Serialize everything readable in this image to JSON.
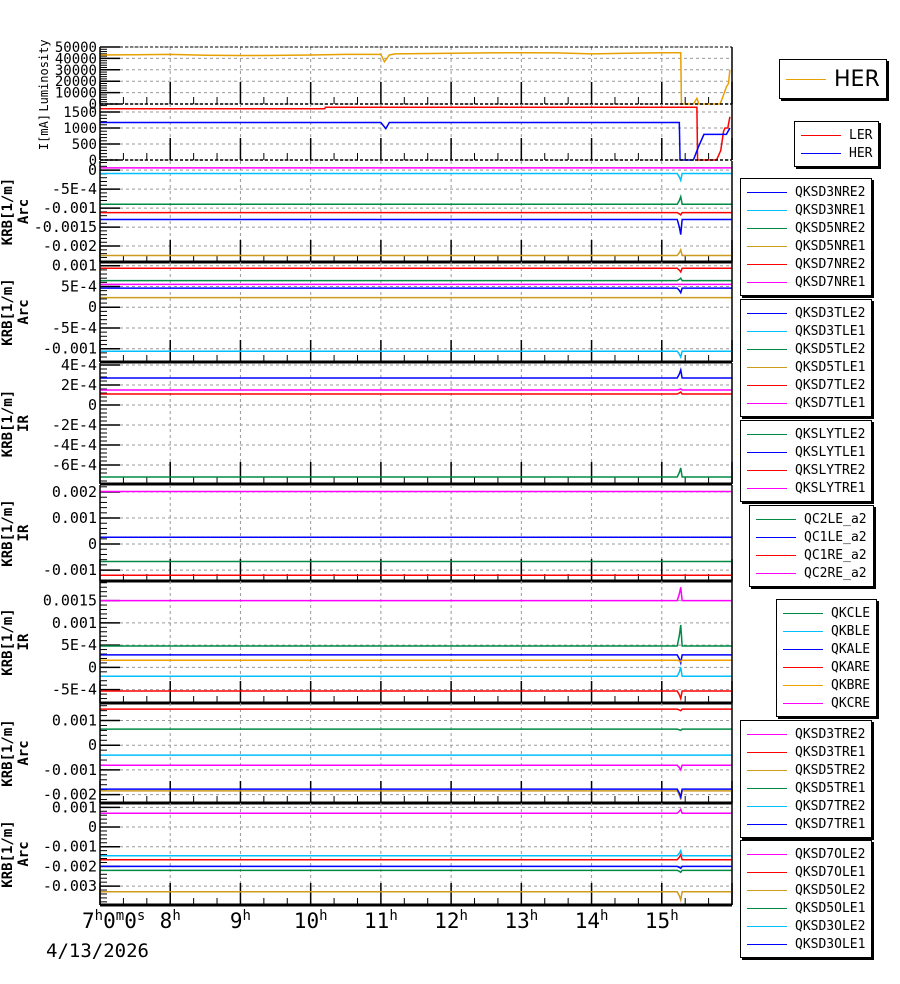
{
  "chart_data": {
    "type": "line",
    "xlabel": "",
    "date": "4/13/2026",
    "xlim": [
      7,
      16
    ],
    "x_tick_labels": [
      {
        "h": 7,
        "main": "7",
        "sup": "h",
        "rest": "0",
        "sup2": "m",
        "rest2": "0",
        "sup3": "s"
      },
      {
        "h": 8,
        "main": "8",
        "sup": "h"
      },
      {
        "h": 9,
        "main": "9",
        "sup": "h"
      },
      {
        "h": 10,
        "main": "10",
        "sup": "h"
      },
      {
        "h": 11,
        "main": "11",
        "sup": "h"
      },
      {
        "h": 12,
        "main": "12",
        "sup": "h"
      },
      {
        "h": 13,
        "main": "13",
        "sup": "h"
      },
      {
        "h": 14,
        "main": "14",
        "sup": "h"
      },
      {
        "h": 15,
        "main": "15",
        "sup": "h"
      }
    ],
    "grid": true,
    "panels": [
      {
        "ylabel": [
          "Luminosity"
        ],
        "ylim": [
          0,
          50000
        ],
        "ticks": [
          {
            "v": 0,
            "t": "0"
          },
          {
            "v": 10000,
            "t": "10000"
          },
          {
            "v": 20000,
            "t": "20000"
          },
          {
            "v": 30000,
            "t": "30000"
          },
          {
            "v": 40000,
            "t": "40000"
          },
          {
            "v": 50000,
            "t": "50000"
          }
        ],
        "legend_big": true,
        "series": [
          {
            "name": "HER",
            "color": "#e8a000",
            "points": [
              [
                7,
                43000
              ],
              [
                7.5,
                43200
              ],
              [
                8,
                43500
              ],
              [
                8.5,
                42800
              ],
              [
                9,
                42500
              ],
              [
                9.5,
                42700
              ],
              [
                10,
                43000
              ],
              [
                10.5,
                43500
              ],
              [
                11,
                43500
              ],
              [
                11.05,
                37000
              ],
              [
                11.12,
                43000
              ],
              [
                11.2,
                44000
              ],
              [
                12,
                44500
              ],
              [
                12.5,
                44800
              ],
              [
                13,
                45000
              ],
              [
                13.5,
                44800
              ],
              [
                14,
                44000
              ],
              [
                14.5,
                44500
              ],
              [
                15,
                45000
              ],
              [
                15.27,
                45000
              ],
              [
                15.28,
                0
              ],
              [
                15.45,
                0
              ],
              [
                15.5,
                5000
              ],
              [
                15.53,
                0
              ],
              [
                15.83,
                0
              ],
              [
                15.88,
                8000
              ],
              [
                15.92,
                15000
              ],
              [
                15.95,
                18000
              ],
              [
                15.97,
                30000
              ]
            ]
          }
        ]
      },
      {
        "ylabel": [
          "I[mA]"
        ],
        "ylim": [
          0,
          1750
        ],
        "ticks": [
          {
            "v": 0,
            "t": "0"
          },
          {
            "v": 500,
            "t": "500"
          },
          {
            "v": 1000,
            "t": "1000"
          },
          {
            "v": 1500,
            "t": "1500"
          }
        ],
        "series": [
          {
            "name": "LER",
            "color": "#ff0000",
            "points": [
              [
                7,
                1600
              ],
              [
                10.2,
                1600
              ],
              [
                10.21,
                1650
              ],
              [
                15.5,
                1650
              ],
              [
                15.51,
                0
              ],
              [
                15.78,
                0
              ],
              [
                15.84,
                300
              ],
              [
                15.88,
                900
              ],
              [
                15.9,
                1000
              ],
              [
                15.94,
                1000
              ],
              [
                15.97,
                1350
              ]
            ]
          },
          {
            "name": "HER",
            "color": "#0000ff",
            "points": [
              [
                7,
                1170
              ],
              [
                11,
                1170
              ],
              [
                11.07,
                980
              ],
              [
                11.12,
                1170
              ],
              [
                15.25,
                1170
              ],
              [
                15.26,
                0
              ],
              [
                15.45,
                0
              ],
              [
                15.52,
                400
              ],
              [
                15.6,
                800
              ],
              [
                15.92,
                800
              ],
              [
                15.97,
                1000
              ]
            ]
          }
        ]
      },
      {
        "ylabel": [
          "KRB[1/m]",
          "Arc"
        ],
        "ylim": [
          -0.00242,
          0.00024
        ],
        "ticks": [
          {
            "v": 0,
            "t": "0"
          },
          {
            "v": -0.0005,
            "t": "-5E-4"
          },
          {
            "v": -0.001,
            "t": "-0.001"
          },
          {
            "v": -0.0015,
            "t": "-0.0015"
          },
          {
            "v": -0.002,
            "t": "-0.002"
          }
        ],
        "series": [
          {
            "name": "QKSD3NRE2",
            "color": "#0000ff",
            "value": -0.0013,
            "spike": -0.0017
          },
          {
            "name": "QKSD3NRE1",
            "color": "#00bfff",
            "value": -9e-05,
            "spike": -0.00027
          },
          {
            "name": "QKSD5NRE2",
            "color": "#008b45",
            "value": -0.0009,
            "spike": -0.0007
          },
          {
            "name": "QKSD5NRE1",
            "color": "#cd9b1d",
            "value": -0.00225,
            "spike": -0.0021
          },
          {
            "name": "QKSD7NRE2",
            "color": "#ff0000",
            "value": -0.00112,
            "spike": -0.00118
          },
          {
            "name": "QKSD7NRE1",
            "color": "#ff00ff",
            "value": 6e-05,
            "spike": 6e-05
          }
        ]
      },
      {
        "ylabel": [
          "KRB[1/m]",
          "Arc"
        ],
        "ylim": [
          -0.00132,
          0.00109
        ],
        "ticks": [
          {
            "v": 0.001,
            "t": "0.001"
          },
          {
            "v": 0.0005,
            "t": "5E-4"
          },
          {
            "v": 0,
            "t": "0"
          },
          {
            "v": -0.0005,
            "t": "-5E-4"
          },
          {
            "v": -0.001,
            "t": "-0.001"
          }
        ],
        "series": [
          {
            "name": "QKSD3TLE2",
            "color": "#0000ff",
            "value": 0.00046,
            "spike": 0.00035
          },
          {
            "name": "QKSD3TLE1",
            "color": "#00bfff",
            "value": -0.00106,
            "spike": -0.0012
          },
          {
            "name": "QKSD5TLE2",
            "color": "#008b45",
            "value": 0.00064,
            "spike": 0.0007
          },
          {
            "name": "QKSD5TLE1",
            "color": "#cd9b1d",
            "value": 0.00023,
            "spike": 0.00023
          },
          {
            "name": "QKSD7TLE2",
            "color": "#ff0000",
            "value": 0.00094,
            "spike": 0.00085
          },
          {
            "name": "QKSD7TLE1",
            "color": "#ff00ff",
            "value": 0.00055,
            "spike": 0.00055
          }
        ]
      },
      {
        "ylabel": [
          "KRB[1/m]",
          "IR"
        ],
        "ylim": [
          -0.00079,
          0.00042
        ],
        "ticks": [
          {
            "v": 0.0004,
            "t": "4E-4"
          },
          {
            "v": 0.0002,
            "t": "2E-4"
          },
          {
            "v": 0,
            "t": "0"
          },
          {
            "v": -0.0002,
            "t": "-2E-4"
          },
          {
            "v": -0.0004,
            "t": "-4E-4"
          },
          {
            "v": -0.0006,
            "t": "-6E-4"
          }
        ],
        "series": [
          {
            "name": "QKSLYTLE2",
            "color": "#008b45",
            "value": -0.00072,
            "spike": -0.00063
          },
          {
            "name": "QKSLYTLE1",
            "color": "#0000ff",
            "value": 0.00027,
            "spike": 0.00035
          },
          {
            "name": "QKSLYTRE2",
            "color": "#ff0000",
            "value": 0.00011,
            "spike": 0.00013
          },
          {
            "name": "QKSLYTRE1",
            "color": "#ff00ff",
            "value": 0.00015,
            "spike": 0.00016
          }
        ]
      },
      {
        "ylabel": [
          "KRB[1/m]",
          "IR"
        ],
        "ylim": [
          -0.00142,
          0.00227
        ],
        "ticks": [
          {
            "v": 0.002,
            "t": "0.002"
          },
          {
            "v": 0.001,
            "t": "0.001"
          },
          {
            "v": 0,
            "t": "0"
          },
          {
            "v": -0.001,
            "t": "-0.001"
          }
        ],
        "series": [
          {
            "name": "QC2LE_a2",
            "color": "#008b45",
            "value": -0.00067,
            "spike": -0.00067
          },
          {
            "name": "QC1LE_a2",
            "color": "#0000ff",
            "value": 0.00026,
            "spike": 0.00026
          },
          {
            "name": "QC1RE_a2",
            "color": "#ff0000",
            "value": -0.0012,
            "spike": -0.0012
          },
          {
            "name": "QC2RE_a2",
            "color": "#ff00ff",
            "value": 0.00202,
            "spike": 0.00202
          }
        ]
      },
      {
        "ylabel": [
          "KRB[1/m]",
          "IR"
        ],
        "ylim": [
          -0.0008,
          0.00194
        ],
        "ticks": [
          {
            "v": 0.0015,
            "t": "0.0015"
          },
          {
            "v": 0.001,
            "t": "0.001"
          },
          {
            "v": 0.0005,
            "t": "5E-4"
          },
          {
            "v": 0,
            "t": "0"
          },
          {
            "v": -0.0005,
            "t": "-5E-4"
          }
        ],
        "series": [
          {
            "name": "QKCLE",
            "color": "#008b45",
            "value": 0.00048,
            "spike": 0.00095
          },
          {
            "name": "QKBLE",
            "color": "#00bfff",
            "value": -0.0002,
            "spike": 0.0
          },
          {
            "name": "QKALE",
            "color": "#0000ff",
            "value": 0.00028,
            "spike": 0.0001
          },
          {
            "name": "QKARE",
            "color": "#ff0000",
            "value": -0.00053,
            "spike": -0.0007
          },
          {
            "name": "QKBRE",
            "color": "#f0a000",
            "value": 0.00016,
            "spike": 0.00013
          },
          {
            "name": "QKCRE",
            "color": "#ff00ff",
            "value": 0.0015,
            "spike": 0.0018
          }
        ]
      },
      {
        "ylabel": [
          "KRB[1/m]",
          "Arc"
        ],
        "ylim": [
          -0.00234,
          0.00171
        ],
        "ticks": [
          {
            "v": 0.001,
            "t": "0.001"
          },
          {
            "v": 0,
            "t": "0"
          },
          {
            "v": -0.001,
            "t": "-0.001"
          },
          {
            "v": -0.002,
            "t": "-0.002"
          }
        ],
        "series": [
          {
            "name": "QKSD3TRE2",
            "color": "#ff00ff",
            "value": -0.00081,
            "spike": -0.001
          },
          {
            "name": "QKSD3TRE1",
            "color": "#ff0000",
            "value": 0.00146,
            "spike": 0.0014
          },
          {
            "name": "QKSD5TRE2",
            "color": "#cd9b1d",
            "value": -0.00185,
            "spike": -0.0022
          },
          {
            "name": "QKSD5TRE1",
            "color": "#008b45",
            "value": 0.00065,
            "spike": 0.0006
          },
          {
            "name": "QKSD7TRE2",
            "color": "#00bfff",
            "value": -0.0004,
            "spike": -0.0004
          },
          {
            "name": "QKSD7TRE1",
            "color": "#0000ff",
            "value": -0.00178,
            "spike": -0.0021
          }
        ]
      },
      {
        "ylabel": [
          "KRB[1/m]",
          "Arc"
        ],
        "ylim": [
          -0.00396,
          0.00122
        ],
        "ticks": [
          {
            "v": 0.001,
            "t": "0.001"
          },
          {
            "v": 0,
            "t": "0"
          },
          {
            "v": -0.001,
            "t": "-0.001"
          },
          {
            "v": -0.002,
            "t": "-0.002"
          },
          {
            "v": -0.003,
            "t": "-0.003"
          }
        ],
        "series": [
          {
            "name": "QKSD7OLE2",
            "color": "#ff00ff",
            "value": 0.0007,
            "spike": 0.0009
          },
          {
            "name": "QKSD7OLE1",
            "color": "#ff0000",
            "value": -0.00166,
            "spike": -0.0014
          },
          {
            "name": "QKSD5OLE2",
            "color": "#cd9b1d",
            "value": -0.00329,
            "spike": -0.0037
          },
          {
            "name": "QKSD5OLE1",
            "color": "#008b45",
            "value": -0.0022,
            "spike": -0.0023
          },
          {
            "name": "QKSD3OLE2",
            "color": "#00bfff",
            "value": -0.00146,
            "spike": -0.0012
          },
          {
            "name": "QKSD3OLE1",
            "color": "#0000ff",
            "value": -0.002,
            "spike": -0.0021
          }
        ]
      }
    ]
  }
}
